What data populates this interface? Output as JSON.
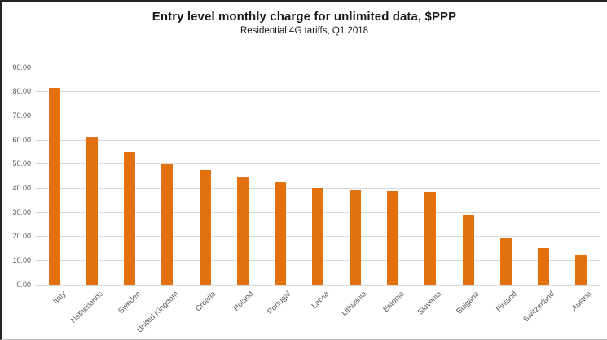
{
  "chart_data": {
    "type": "bar",
    "title": "Entry level monthly charge for unlimited data, $PPP",
    "subtitle": "Residential 4G tariffs, Q1 2018",
    "categories": [
      "Italy",
      "Netherlands",
      "Sweden",
      "United Kingdom",
      "Croatia",
      "Poland",
      "Portugal",
      "Latvia",
      "Lithuania",
      "Estonia",
      "Slovenia",
      "Bulgaria",
      "Finland",
      "Switzerland",
      "Austria"
    ],
    "values": [
      81.5,
      61.2,
      55.0,
      49.8,
      47.7,
      44.5,
      42.4,
      40.1,
      39.5,
      38.9,
      38.3,
      28.9,
      19.5,
      15.2,
      12.3
    ],
    "xlabel": "",
    "ylabel": "",
    "ylim": [
      0,
      90
    ],
    "ytick_step": 10,
    "ytick_labels": [
      "0.00",
      "10.00",
      "20.00",
      "30.00",
      "40.00",
      "50.00",
      "60.00",
      "70.00",
      "80.00",
      "90.00"
    ],
    "grid": true,
    "legend": "none",
    "bar_color": "#E2710D",
    "gridline_color": "#D9D9D9",
    "axis_text_color": "#595959"
  }
}
